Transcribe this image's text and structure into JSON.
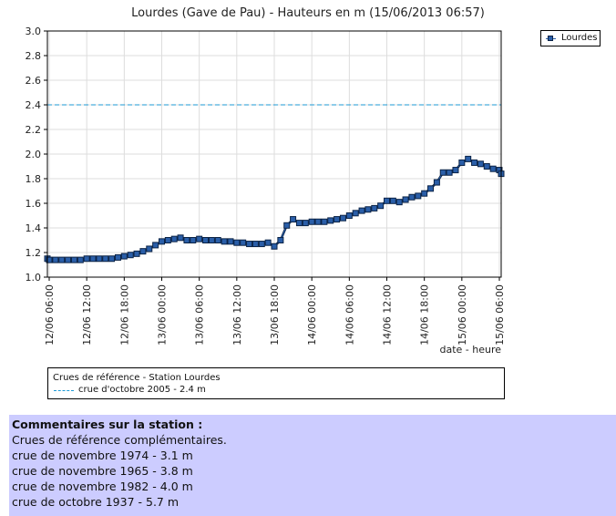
{
  "chart_data": {
    "type": "line",
    "title": "Lourdes (Gave de Pau) - Hauteurs en m (15/06/2013 06:57)",
    "xlabel": "date - heure",
    "ylabel": "",
    "ylim": [
      1.0,
      3.0
    ],
    "yticks": [
      "1.0",
      "1.2",
      "1.4",
      "1.6",
      "1.8",
      "2.0",
      "2.2",
      "2.4",
      "2.6",
      "2.8",
      "3.0"
    ],
    "x_start": "12/06 06:00",
    "x_end": "15/06 06:00",
    "xticks": [
      "12/06 06:00",
      "12/06 12:00",
      "12/06 18:00",
      "13/06 00:00",
      "13/06 06:00",
      "13/06 12:00",
      "13/06 18:00",
      "14/06 00:00",
      "14/06 06:00",
      "14/06 12:00",
      "14/06 18:00",
      "15/06 00:00",
      "15/06 06:00"
    ],
    "grid": true,
    "legend": "top-right",
    "series": [
      {
        "name": "Lourdes",
        "color": "#2a5ea8",
        "points": [
          [
            "12/06 05:00",
            1.15
          ],
          [
            "12/06 06:00",
            1.14
          ],
          [
            "12/06 07:00",
            1.14
          ],
          [
            "12/06 08:00",
            1.14
          ],
          [
            "12/06 09:00",
            1.14
          ],
          [
            "12/06 10:00",
            1.14
          ],
          [
            "12/06 11:00",
            1.14
          ],
          [
            "12/06 12:00",
            1.15
          ],
          [
            "12/06 13:00",
            1.15
          ],
          [
            "12/06 14:00",
            1.15
          ],
          [
            "12/06 15:00",
            1.15
          ],
          [
            "12/06 16:00",
            1.15
          ],
          [
            "12/06 17:00",
            1.16
          ],
          [
            "12/06 18:00",
            1.17
          ],
          [
            "12/06 19:00",
            1.18
          ],
          [
            "12/06 20:00",
            1.19
          ],
          [
            "12/06 21:00",
            1.21
          ],
          [
            "12/06 22:00",
            1.23
          ],
          [
            "12/06 23:00",
            1.26
          ],
          [
            "13/06 00:00",
            1.29
          ],
          [
            "13/06 01:00",
            1.3
          ],
          [
            "13/06 02:00",
            1.31
          ],
          [
            "13/06 03:00",
            1.32
          ],
          [
            "13/06 04:00",
            1.3
          ],
          [
            "13/06 05:00",
            1.3
          ],
          [
            "13/06 06:00",
            1.31
          ],
          [
            "13/06 07:00",
            1.3
          ],
          [
            "13/06 08:00",
            1.3
          ],
          [
            "13/06 09:00",
            1.3
          ],
          [
            "13/06 10:00",
            1.29
          ],
          [
            "13/06 11:00",
            1.29
          ],
          [
            "13/06 12:00",
            1.28
          ],
          [
            "13/06 13:00",
            1.28
          ],
          [
            "13/06 14:00",
            1.27
          ],
          [
            "13/06 15:00",
            1.27
          ],
          [
            "13/06 16:00",
            1.27
          ],
          [
            "13/06 17:00",
            1.28
          ],
          [
            "13/06 18:00",
            1.25
          ],
          [
            "13/06 19:00",
            1.3
          ],
          [
            "13/06 20:00",
            1.42
          ],
          [
            "13/06 21:00",
            1.47
          ],
          [
            "13/06 22:00",
            1.44
          ],
          [
            "13/06 23:00",
            1.44
          ],
          [
            "14/06 00:00",
            1.45
          ],
          [
            "14/06 01:00",
            1.45
          ],
          [
            "14/06 02:00",
            1.45
          ],
          [
            "14/06 03:00",
            1.46
          ],
          [
            "14/06 04:00",
            1.47
          ],
          [
            "14/06 05:00",
            1.48
          ],
          [
            "14/06 06:00",
            1.5
          ],
          [
            "14/06 07:00",
            1.52
          ],
          [
            "14/06 08:00",
            1.54
          ],
          [
            "14/06 09:00",
            1.55
          ],
          [
            "14/06 10:00",
            1.56
          ],
          [
            "14/06 11:00",
            1.58
          ],
          [
            "14/06 12:00",
            1.62
          ],
          [
            "14/06 13:00",
            1.62
          ],
          [
            "14/06 14:00",
            1.61
          ],
          [
            "14/06 15:00",
            1.63
          ],
          [
            "14/06 16:00",
            1.65
          ],
          [
            "14/06 17:00",
            1.66
          ],
          [
            "14/06 18:00",
            1.68
          ],
          [
            "14/06 19:00",
            1.72
          ],
          [
            "14/06 20:00",
            1.77
          ],
          [
            "14/06 21:00",
            1.85
          ],
          [
            "14/06 22:00",
            1.85
          ],
          [
            "14/06 23:00",
            1.87
          ],
          [
            "15/06 00:00",
            1.93
          ],
          [
            "15/06 01:00",
            1.96
          ],
          [
            "15/06 02:00",
            1.93
          ],
          [
            "15/06 03:00",
            1.92
          ],
          [
            "15/06 04:00",
            1.9
          ],
          [
            "15/06 05:00",
            1.88
          ],
          [
            "15/06 06:00",
            1.87
          ],
          [
            "15/06 07:00",
            1.84
          ]
        ]
      }
    ],
    "reference_line": {
      "value": 2.4,
      "color": "#1c9ad6",
      "style": "dashed"
    }
  },
  "legend": {
    "label": "Lourdes"
  },
  "reference_box": {
    "title": "Crues de référence - Station Lourdes",
    "item": "crue d'octobre 2005 - 2.4 m"
  },
  "comments": {
    "heading": "Commentaires sur la station :",
    "lines": [
      "Crues de référence complémentaires.",
      "crue de novembre 1974 - 3.1 m",
      "crue de novembre 1965 - 3.8 m",
      "crue de novembre 1982 - 4.0 m",
      "crue de octobre 1937 - 5.7 m"
    ]
  }
}
